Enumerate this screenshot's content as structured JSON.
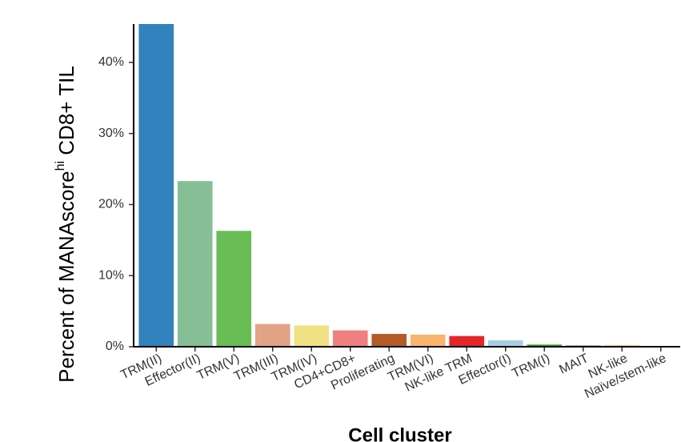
{
  "chart_data": {
    "type": "bar",
    "ylabel_parts": [
      "Percent of MANAscore",
      "hi",
      " CD8+ TIL"
    ],
    "xlabel": "Cell cluster",
    "categories": [
      "TRM(II)",
      "Effector(II)",
      "TRM(V)",
      "TRM(III)",
      "TRM(IV)",
      "CD4+CD8+",
      "Proliferating",
      "TRM(VI)",
      "NK-like TRM",
      "Effector(I)",
      "TRM(I)",
      "MAIT",
      "NK-like",
      "Naïve/stem-like"
    ],
    "values": [
      45.4,
      23.3,
      16.3,
      3.2,
      3.0,
      2.3,
      1.8,
      1.7,
      1.5,
      0.9,
      0.3,
      0.2,
      0.2,
      0.05
    ],
    "colors": [
      "#3182bd",
      "#86bf96",
      "#6abc55",
      "#e2a286",
      "#f1e185",
      "#f08080",
      "#b35a27",
      "#f9b46e",
      "#e3262a",
      "#a6cee3",
      "#33a02c",
      "#9e9ac8",
      "#fdbf6f",
      "#999999"
    ],
    "ylim": [
      0,
      45.4
    ],
    "yticks": [
      {
        "value": 0,
        "label": "0%"
      },
      {
        "value": 10,
        "label": "10%"
      },
      {
        "value": 20,
        "label": "20%"
      },
      {
        "value": 30,
        "label": "30%"
      },
      {
        "value": 40,
        "label": "40%"
      }
    ],
    "grid": false
  }
}
